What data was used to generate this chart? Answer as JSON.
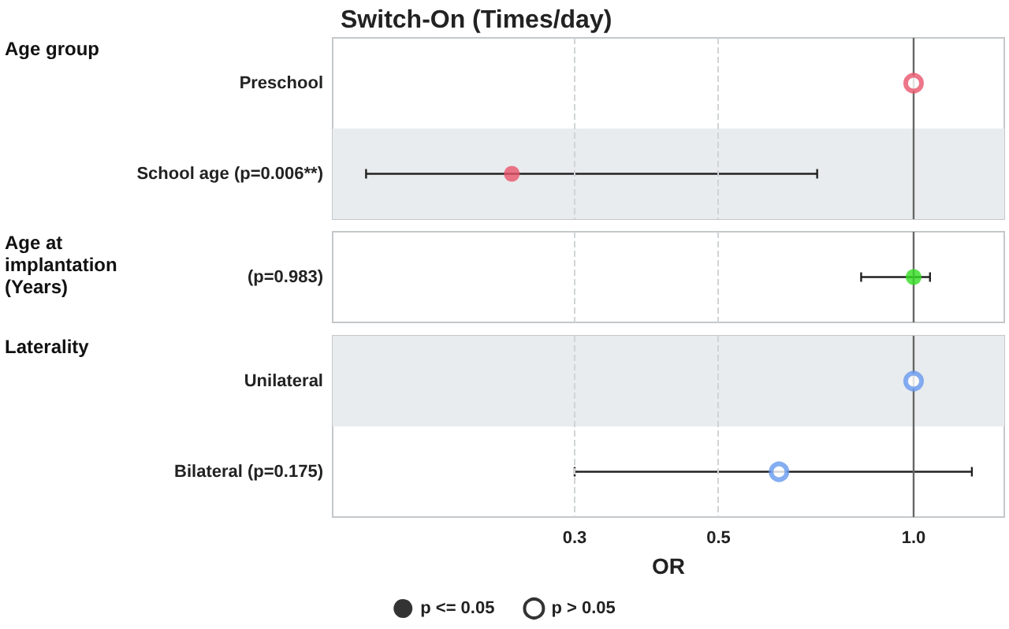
{
  "chart_data": [
    {
      "type": "scatter",
      "orientation": "horizontal",
      "title": "Switch-On (Times/day)",
      "ylabel": "Age group",
      "categories": [
        "Preschool",
        "School age (p=0.006**)"
      ],
      "log": "x",
      "xlim": [
        0.127,
        1.38
      ],
      "grid": "x",
      "tick_labels": "y",
      "bands": [
        {
          "axis": "y",
          "from": "School age (p=0.006**)",
          "to": "School age (p=0.006**)",
          "color": "#e8ecee"
        }
      ],
      "ref_lines": [
        {
          "axis": "x",
          "value": 1,
          "color": "#666666"
        }
      ],
      "series": [
        {
          "color": "#000000",
          "marker": "circle",
          "values": [
            null,
            0.24
          ],
          "colors": [
            null,
            "#e8546a"
          ],
          "errors": [
            null,
            [
              0.143,
              0.71
            ]
          ]
        },
        {
          "color": "#000000",
          "marker": "circle",
          "values": [
            1,
            null
          ],
          "colors": [
            "#e8546a",
            null
          ]
        }
      ]
    },
    {
      "type": "scatter",
      "orientation": "horizontal",
      "ylabel": "Age at implantation (Years)",
      "categories": [
        "(p=0.983)"
      ],
      "log": "x",
      "xlim": [
        0.127,
        1.38
      ],
      "grid": "x",
      "tick_labels": "y",
      "ref_lines": [
        {
          "axis": "x",
          "value": 1,
          "color": "#666666"
        }
      ],
      "series": [
        {
          "color": "#000000",
          "marker": "circle",
          "values": [
            1
          ],
          "colors": [
            "#33dd22"
          ],
          "errors": [
            [
              0.83,
              1.06
            ]
          ]
        }
      ]
    },
    {
      "type": "scatter",
      "orientation": "horizontal",
      "ylabel": "Laterality",
      "xlabel": "OR",
      "categories": [
        "Unilateral",
        "Bilateral (p=0.175)"
      ],
      "log": "x",
      "xlim": [
        0.127,
        1.38
      ],
      "xticks": [
        0.3,
        0.5,
        {
          "value": 1,
          "label": "1.0"
        }
      ],
      "grid": "x",
      "legend": "bottom",
      "bands": [
        {
          "axis": "y",
          "from": "Unilateral",
          "to": "Unilateral",
          "color": "#e8ecee"
        }
      ],
      "ref_lines": [
        {
          "axis": "x",
          "value": 1,
          "color": "#666666"
        }
      ],
      "series": [
        {
          "name": "p <= 0.05",
          "color": "#000000",
          "marker": "circle",
          "values": [
            null,
            null
          ],
          "colors": [
            null,
            null
          ]
        },
        {
          "name": "p > 0.05",
          "color": "#000000",
          "marker": "circle",
          "values": [
            1,
            0.62
          ],
          "colors": [
            "#6699ee",
            "#6699ee"
          ],
          "errors": [
            null,
            [
              0.3,
              1.23
            ]
          ]
        }
      ]
    }
  ]
}
